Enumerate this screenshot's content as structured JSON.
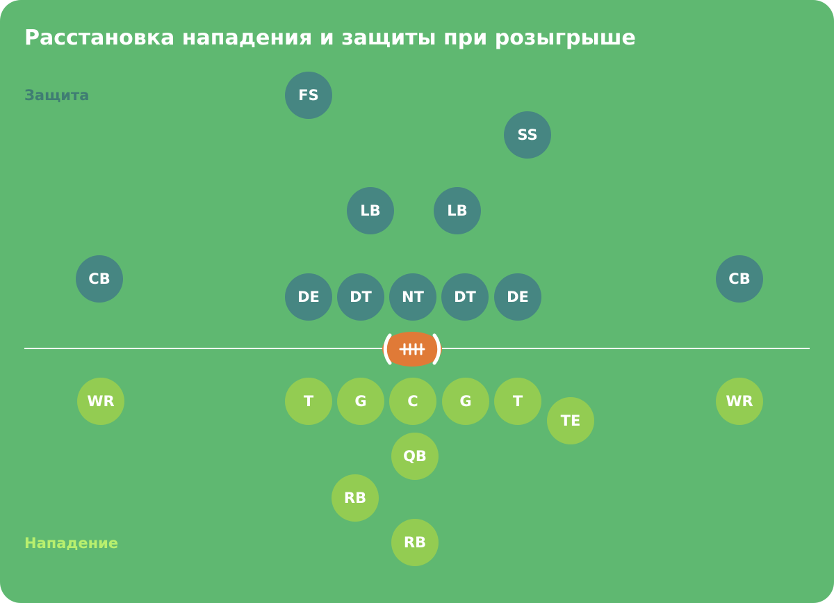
{
  "title": "Расстановка нападения и защиты при розыгрыше",
  "labels": {
    "defense": "Защита",
    "offense": "Нападение"
  },
  "colors": {
    "field": "#5fb871",
    "defense": "#468682",
    "defense_label": "#3f7d73",
    "offense": "#93cc52",
    "offense_label": "#b8ef6e",
    "line": "#ffffff",
    "ball_body": "#e07a37",
    "ball_stripe": "#ffffff"
  },
  "icons": {
    "ball": "football-icon"
  },
  "defense": [
    "FS",
    "SS",
    "LB",
    "LB",
    "CB",
    "DE",
    "DT",
    "NT",
    "DT",
    "DE",
    "CB"
  ],
  "offense": [
    "WR",
    "T",
    "G",
    "C",
    "G",
    "T",
    "TE",
    "WR",
    "QB",
    "RB",
    "RB"
  ]
}
